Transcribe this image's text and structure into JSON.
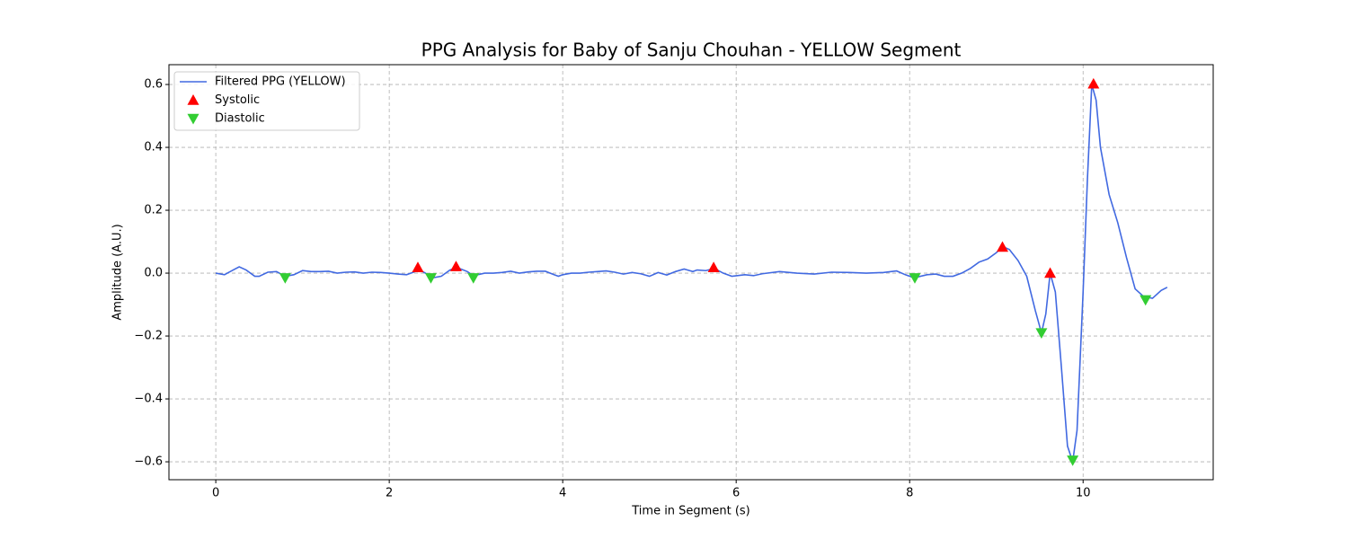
{
  "chart_data": {
    "type": "line",
    "title": "PPG Analysis for Baby of Sanju Chouhan - YELLOW Segment",
    "x_label": "Time in Segment (s)",
    "y_label": "Amplitude (A.U.)",
    "xlim": [
      -0.54,
      11.5
    ],
    "ylim": [
      -0.657,
      0.663
    ],
    "xticks": [
      0,
      2,
      4,
      6,
      8,
      10
    ],
    "yticks": [
      {
        "value": -0.6,
        "label": "−0.6"
      },
      {
        "value": -0.4,
        "label": "−0.4"
      },
      {
        "value": -0.2,
        "label": "−0.2"
      },
      {
        "value": 0,
        "label": "0.0"
      },
      0.2,
      0.4,
      0.6
    ],
    "grid": true,
    "legend": "upper left",
    "x": [
      0,
      0.1,
      0.2,
      0.27,
      0.35,
      0.45,
      0.5,
      0.6,
      0.7,
      0.8,
      0.9,
      1.0,
      1.1,
      1.2,
      1.3,
      1.4,
      1.5,
      1.6,
      1.7,
      1.8,
      1.9,
      2.0,
      2.1,
      2.2,
      2.3,
      2.35,
      2.45,
      2.5,
      2.6,
      2.7,
      2.78,
      2.9,
      2.97,
      3.1,
      3.2,
      3.3,
      3.4,
      3.5,
      3.6,
      3.7,
      3.8,
      3.9,
      3.95,
      4.0,
      4.1,
      4.2,
      4.3,
      4.4,
      4.5,
      4.6,
      4.7,
      4.8,
      4.9,
      5.0,
      5.1,
      5.2,
      5.3,
      5.4,
      5.5,
      5.55,
      5.65,
      5.75,
      5.85,
      5.95,
      6.1,
      6.2,
      6.3,
      6.5,
      6.7,
      6.9,
      7.1,
      7.3,
      7.5,
      7.7,
      7.85,
      7.95,
      8.05,
      8.2,
      8.3,
      8.4,
      8.5,
      8.6,
      8.7,
      8.8,
      8.9,
      9.0,
      9.07,
      9.15,
      9.25,
      9.35,
      9.45,
      9.52,
      9.57,
      9.62,
      9.68,
      9.75,
      9.82,
      9.88,
      9.93,
      10.0,
      10.05,
      10.1,
      10.15,
      10.2,
      10.3,
      10.4,
      10.5,
      10.6,
      10.7,
      10.8,
      10.9,
      10.97
    ],
    "series": [
      {
        "name": "Filtered PPG (YELLOW)",
        "type": "line",
        "color": "#4169e1",
        "values": [
          0,
          -0.005,
          0.01,
          0.02,
          0.01,
          -0.01,
          -0.01,
          0.003,
          0.005,
          -0.01,
          -0.005,
          0.008,
          0.005,
          0.005,
          0.006,
          0,
          0.003,
          0.004,
          0,
          0.003,
          0.002,
          0,
          -0.003,
          -0.005,
          0.005,
          0.01,
          -0.005,
          -0.015,
          -0.01,
          0.01,
          0.018,
          0.005,
          -0.008,
          0,
          0,
          0.002,
          0.006,
          0,
          0.004,
          0.006,
          0.006,
          -0.005,
          -0.01,
          -0.005,
          0,
          0,
          0.003,
          0.005,
          0.007,
          0.003,
          -0.003,
          0.002,
          -0.002,
          -0.01,
          0.002,
          -0.006,
          0.005,
          0.013,
          0.005,
          0.01,
          0.008,
          0.015,
          0,
          -0.01,
          -0.005,
          -0.008,
          -0.002,
          0.005,
          0,
          -0.003,
          0.003,
          0.002,
          0,
          0.002,
          0.007,
          -0.005,
          -0.015,
          -0.005,
          -0.003,
          -0.01,
          -0.01,
          0,
          0.015,
          0.035,
          0.045,
          0.065,
          0.085,
          0.075,
          0.04,
          -0.01,
          -0.12,
          -0.19,
          -0.13,
          0,
          -0.06,
          -0.3,
          -0.55,
          -0.6,
          -0.5,
          -0.06,
          0.3,
          0.6,
          0.55,
          0.4,
          0.25,
          0.16,
          0.05,
          -0.05,
          -0.075,
          -0.08,
          -0.055,
          -0.045
        ]
      },
      {
        "name": "Systolic",
        "type": "scatter",
        "marker": "up",
        "color": "#ff0000",
        "x": [
          2.33,
          2.77,
          5.74,
          9.07,
          9.62,
          10.12
        ],
        "values": [
          0.018,
          0.021,
          0.018,
          0.083,
          0,
          0.602
        ]
      },
      {
        "name": "Diastolic",
        "type": "scatter",
        "marker": "down",
        "color": "#32cd32",
        "x": [
          0.8,
          2.48,
          2.97,
          8.06,
          9.52,
          9.88,
          10.72
        ],
        "values": [
          -0.015,
          -0.015,
          -0.015,
          -0.015,
          -0.19,
          -0.595,
          -0.085
        ]
      }
    ]
  }
}
